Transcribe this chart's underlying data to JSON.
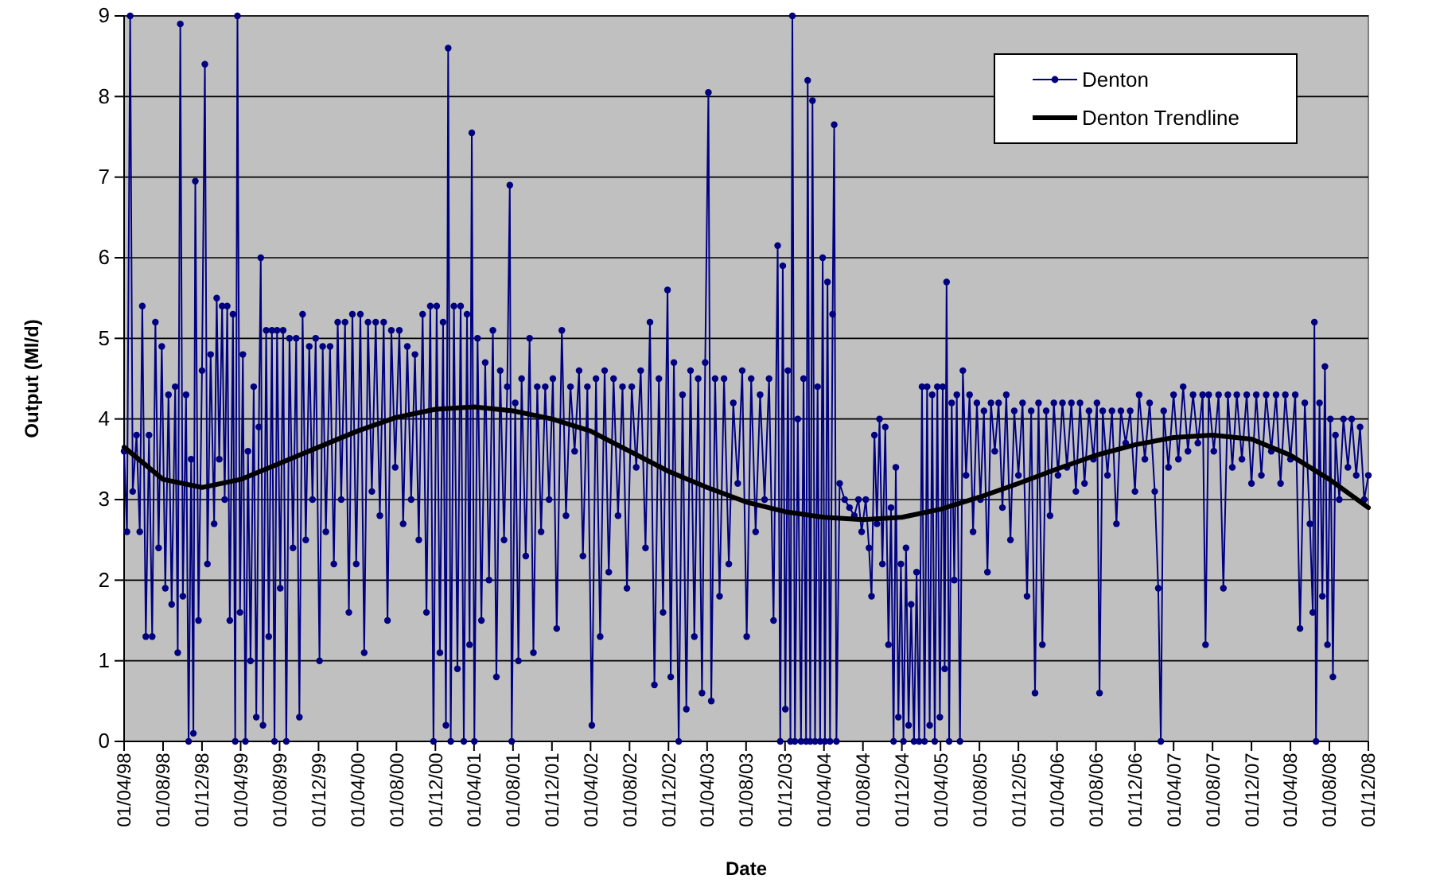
{
  "chart_data": {
    "type": "line",
    "xlabel": "Date",
    "ylabel": "Output (Ml/d)",
    "xlim": [
      "1998-04-01",
      "2008-12-01"
    ],
    "ylim": [
      0,
      9
    ],
    "yticks": [
      0,
      1,
      2,
      3,
      4,
      5,
      6,
      7,
      8,
      9
    ],
    "xticks": [
      {
        "value": "1998-04-01",
        "label": "01/04/98"
      },
      {
        "value": "1998-08-01",
        "label": "01/08/98"
      },
      {
        "value": "1998-12-01",
        "label": "01/12/98"
      },
      {
        "value": "1999-04-01",
        "label": "01/04/99"
      },
      {
        "value": "1999-08-01",
        "label": "01/08/99"
      },
      {
        "value": "1999-12-01",
        "label": "01/12/99"
      },
      {
        "value": "2000-04-01",
        "label": "01/04/00"
      },
      {
        "value": "2000-08-01",
        "label": "01/08/00"
      },
      {
        "value": "2000-12-01",
        "label": "01/12/00"
      },
      {
        "value": "2001-04-01",
        "label": "01/04/01"
      },
      {
        "value": "2001-08-01",
        "label": "01/08/01"
      },
      {
        "value": "2001-12-01",
        "label": "01/12/01"
      },
      {
        "value": "2002-04-01",
        "label": "01/04/02"
      },
      {
        "value": "2002-08-01",
        "label": "01/08/02"
      },
      {
        "value": "2002-12-01",
        "label": "01/12/02"
      },
      {
        "value": "2003-04-01",
        "label": "01/04/03"
      },
      {
        "value": "2003-08-01",
        "label": "01/08/03"
      },
      {
        "value": "2003-12-01",
        "label": "01/12/03"
      },
      {
        "value": "2004-04-01",
        "label": "01/04/04"
      },
      {
        "value": "2004-08-01",
        "label": "01/08/04"
      },
      {
        "value": "2004-12-01",
        "label": "01/12/04"
      },
      {
        "value": "2005-04-01",
        "label": "01/04/05"
      },
      {
        "value": "2005-08-01",
        "label": "01/08/05"
      },
      {
        "value": "2005-12-01",
        "label": "01/12/05"
      },
      {
        "value": "2006-04-01",
        "label": "01/04/06"
      },
      {
        "value": "2006-08-01",
        "label": "01/08/06"
      },
      {
        "value": "2006-12-01",
        "label": "01/12/06"
      },
      {
        "value": "2007-04-01",
        "label": "01/04/07"
      },
      {
        "value": "2007-08-01",
        "label": "01/08/07"
      },
      {
        "value": "2007-12-01",
        "label": "01/12/07"
      },
      {
        "value": "2008-04-01",
        "label": "01/04/08"
      },
      {
        "value": "2008-08-01",
        "label": "01/08/08"
      },
      {
        "value": "2008-12-01",
        "label": "01/12/08"
      }
    ],
    "grid": "y",
    "legend": "top right",
    "series": [
      {
        "name": "Denton",
        "color": "#000080",
        "marker": "circle",
        "line_style": "solid",
        "x": [
          "1998-04-01",
          "1998-04-10",
          "1998-04-20",
          "1998-04-28",
          "1998-05-10",
          "1998-05-20",
          "1998-05-28",
          "1998-06-08",
          "1998-06-18",
          "1998-06-28",
          "1998-07-08",
          "1998-07-18",
          "1998-07-28",
          "1998-08-08",
          "1998-08-18",
          "1998-08-28",
          "1998-09-08",
          "1998-09-16",
          "1998-09-24",
          "1998-10-02",
          "1998-10-12",
          "1998-10-20",
          "1998-10-28",
          "1998-11-04",
          "1998-11-10",
          "1998-11-20",
          "1998-12-01",
          "1998-12-10",
          "1998-12-18",
          "1998-12-28",
          "1999-01-08",
          "1999-01-16",
          "1999-01-24",
          "1999-02-02",
          "1999-02-10",
          "1999-02-18",
          "1999-02-26",
          "1999-03-08",
          "1999-03-15",
          "1999-03-22",
          "1999-03-30",
          "1999-04-08",
          "1999-04-16",
          "1999-04-24",
          "1999-05-02",
          "1999-05-12",
          "1999-05-20",
          "1999-05-28",
          "1999-06-03",
          "1999-06-10",
          "1999-06-20",
          "1999-06-28",
          "1999-07-08",
          "1999-07-16",
          "1999-07-24",
          "1999-08-03",
          "1999-08-12",
          "1999-08-22",
          "1999-09-01",
          "1999-09-12",
          "1999-09-22",
          "1999-10-02",
          "1999-10-12",
          "1999-10-22",
          "1999-11-02",
          "1999-11-12",
          "1999-11-22",
          "1999-12-04",
          "1999-12-14",
          "1999-12-24",
          "2000-01-06",
          "2000-01-18",
          "2000-01-30",
          "2000-02-10",
          "2000-02-22",
          "2000-03-05",
          "2000-03-16",
          "2000-03-28",
          "2000-04-10",
          "2000-04-22",
          "2000-05-04",
          "2000-05-16",
          "2000-05-28",
          "2000-06-10",
          "2000-06-22",
          "2000-07-04",
          "2000-07-16",
          "2000-07-28",
          "2000-08-10",
          "2000-08-22",
          "2000-09-04",
          "2000-09-16",
          "2000-09-28",
          "2000-10-10",
          "2000-10-22",
          "2000-11-03",
          "2000-11-15",
          "2000-11-25",
          "2000-12-05",
          "2000-12-15",
          "2000-12-25",
          "2001-01-03",
          "2001-01-10",
          "2001-01-18",
          "2001-01-28",
          "2001-02-08",
          "2001-02-18",
          "2001-02-28",
          "2001-03-10",
          "2001-03-18",
          "2001-03-25",
          "2001-04-02",
          "2001-04-12",
          "2001-04-24",
          "2001-05-06",
          "2001-05-18",
          "2001-05-30",
          "2001-06-10",
          "2001-06-22",
          "2001-07-04",
          "2001-07-14",
          "2001-07-22",
          "2001-07-28",
          "2001-08-08",
          "2001-08-18",
          "2001-08-28",
          "2001-09-10",
          "2001-09-22",
          "2001-10-04",
          "2001-10-16",
          "2001-10-28",
          "2001-11-10",
          "2001-11-22",
          "2001-12-04",
          "2001-12-16",
          "2002-01-01",
          "2002-01-14",
          "2002-01-28",
          "2002-02-10",
          "2002-02-24",
          "2002-03-08",
          "2002-03-22",
          "2002-04-05",
          "2002-04-18",
          "2002-05-01",
          "2002-05-15",
          "2002-05-28",
          "2002-06-12",
          "2002-06-26",
          "2002-07-10",
          "2002-07-24",
          "2002-08-08",
          "2002-08-22",
          "2002-09-05",
          "2002-09-20",
          "2002-10-04",
          "2002-10-18",
          "2002-11-01",
          "2002-11-14",
          "2002-11-28",
          "2002-12-08",
          "2002-12-18",
          "2003-01-02",
          "2003-01-14",
          "2003-01-26",
          "2003-02-08",
          "2003-02-20",
          "2003-03-04",
          "2003-03-16",
          "2003-03-26",
          "2003-04-05",
          "2003-04-14",
          "2003-04-26",
          "2003-05-10",
          "2003-05-24",
          "2003-06-08",
          "2003-06-22",
          "2003-07-06",
          "2003-07-20",
          "2003-08-03",
          "2003-08-17",
          "2003-08-31",
          "2003-09-14",
          "2003-09-28",
          "2003-10-12",
          "2003-10-26",
          "2003-11-08",
          "2003-11-16",
          "2003-11-24",
          "2003-12-02",
          "2003-12-10",
          "2003-12-18",
          "2003-12-24",
          "2004-01-01",
          "2004-01-10",
          "2004-01-20",
          "2004-01-28",
          "2004-02-05",
          "2004-02-10",
          "2004-02-18",
          "2004-02-25",
          "2004-03-04",
          "2004-03-12",
          "2004-03-20",
          "2004-03-28",
          "2004-04-04",
          "2004-04-12",
          "2004-04-20",
          "2004-04-28",
          "2004-05-03",
          "2004-05-10",
          "2004-05-20",
          "2004-06-05",
          "2004-06-20",
          "2004-07-05",
          "2004-07-18",
          "2004-07-28",
          "2004-08-10",
          "2004-08-20",
          "2004-08-28",
          "2004-09-06",
          "2004-09-14",
          "2004-09-22",
          "2004-10-01",
          "2004-10-10",
          "2004-10-20",
          "2004-10-28",
          "2004-11-05",
          "2004-11-12",
          "2004-11-20",
          "2004-11-28",
          "2004-12-06",
          "2004-12-14",
          "2004-12-22",
          "2004-12-30",
          "2005-01-08",
          "2005-01-16",
          "2005-01-24",
          "2005-02-02",
          "2005-02-10",
          "2005-02-18",
          "2005-02-26",
          "2005-03-06",
          "2005-03-14",
          "2005-03-22",
          "2005-03-30",
          "2005-04-08",
          "2005-04-14",
          "2005-04-20",
          "2005-04-28",
          "2005-05-06",
          "2005-05-14",
          "2005-05-22",
          "2005-06-01",
          "2005-06-10",
          "2005-06-20",
          "2005-07-01",
          "2005-07-12",
          "2005-07-24",
          "2005-08-04",
          "2005-08-15",
          "2005-08-26",
          "2005-09-06",
          "2005-09-18",
          "2005-09-30",
          "2005-10-12",
          "2005-10-24",
          "2005-11-06",
          "2005-11-18",
          "2005-12-01",
          "2005-12-14",
          "2005-12-28",
          "2006-01-10",
          "2006-01-22",
          "2006-02-02",
          "2006-02-14",
          "2006-02-26",
          "2006-03-10",
          "2006-03-22",
          "2006-04-04",
          "2006-04-18",
          "2006-05-02",
          "2006-05-16",
          "2006-05-30",
          "2006-06-12",
          "2006-06-26",
          "2006-07-10",
          "2006-07-24",
          "2006-08-04",
          "2006-08-12",
          "2006-08-22",
          "2006-09-06",
          "2006-09-20",
          "2006-10-04",
          "2006-10-18",
          "2006-11-02",
          "2006-11-16",
          "2006-12-01",
          "2006-12-14",
          "2007-01-01",
          "2007-01-16",
          "2007-02-01",
          "2007-02-12",
          "2007-02-20",
          "2007-03-01",
          "2007-03-16",
          "2007-04-01",
          "2007-04-16",
          "2007-05-01",
          "2007-05-16",
          "2007-06-01",
          "2007-06-16",
          "2007-07-01",
          "2007-07-10",
          "2007-07-20",
          "2007-08-05",
          "2007-08-20",
          "2007-09-04",
          "2007-09-18",
          "2007-10-02",
          "2007-10-16",
          "2007-11-01",
          "2007-11-16",
          "2007-12-01",
          "2007-12-16",
          "2008-01-01",
          "2008-01-16",
          "2008-02-01",
          "2008-02-16",
          "2008-03-01",
          "2008-03-16",
          "2008-04-01",
          "2008-04-16",
          "2008-05-01",
          "2008-05-16",
          "2008-06-01",
          "2008-06-10",
          "2008-06-15",
          "2008-06-20",
          "2008-07-01",
          "2008-07-10",
          "2008-07-18",
          "2008-07-26",
          "2008-08-04",
          "2008-08-12",
          "2008-08-20",
          "2008-09-01",
          "2008-09-14",
          "2008-09-28",
          "2008-10-10",
          "2008-10-24",
          "2008-11-05",
          "2008-11-18",
          "2008-12-01"
        ],
        "values": [
          3.6,
          2.6,
          9.0,
          3.1,
          3.8,
          2.6,
          5.4,
          1.3,
          3.8,
          1.3,
          5.2,
          2.4,
          4.9,
          1.9,
          4.3,
          1.7,
          4.4,
          1.1,
          8.9,
          1.8,
          4.3,
          0.0,
          3.5,
          0.1,
          6.95,
          1.5,
          4.6,
          8.4,
          2.2,
          4.8,
          2.7,
          5.5,
          3.5,
          5.4,
          3.0,
          5.4,
          1.5,
          5.3,
          0.0,
          9.0,
          1.6,
          4.8,
          0.0,
          3.6,
          1.0,
          4.4,
          0.3,
          3.9,
          6.0,
          0.2,
          5.1,
          1.3,
          5.1,
          0.0,
          5.1,
          1.9,
          5.1,
          0.0,
          5.0,
          2.4,
          5.0,
          0.3,
          5.3,
          2.5,
          4.9,
          3.0,
          5.0,
          1.0,
          4.9,
          2.6,
          4.9,
          2.2,
          5.2,
          3.0,
          5.2,
          1.6,
          5.3,
          2.2,
          5.3,
          1.1,
          5.2,
          3.1,
          5.2,
          2.8,
          5.2,
          1.5,
          5.1,
          3.4,
          5.1,
          2.7,
          4.9,
          3.0,
          4.8,
          2.5,
          5.3,
          1.6,
          5.4,
          0.0,
          5.4,
          1.1,
          5.2,
          0.2,
          8.6,
          0.0,
          5.4,
          0.9,
          5.4,
          0.0,
          5.3,
          1.2,
          7.55,
          0.0,
          5.0,
          1.5,
          4.7,
          2.0,
          5.1,
          0.8,
          4.6,
          2.5,
          4.4,
          6.9,
          0.0,
          4.2,
          1.0,
          4.5,
          2.3,
          5.0,
          1.1,
          4.4,
          2.6,
          4.4,
          3.0,
          4.5,
          1.4,
          5.1,
          2.8,
          4.4,
          3.6,
          4.6,
          2.3,
          4.4,
          0.2,
          4.5,
          1.3,
          4.6,
          2.1,
          4.5,
          2.8,
          4.4,
          1.9,
          4.4,
          3.4,
          4.6,
          2.4,
          5.2,
          0.7,
          4.5,
          1.6,
          5.6,
          0.8,
          4.7,
          0.0,
          4.3,
          0.4,
          4.6,
          1.3,
          4.5,
          0.6,
          4.7,
          8.05,
          0.5,
          4.5,
          1.8,
          4.5,
          2.2,
          4.2,
          3.2,
          4.6,
          1.3,
          4.5,
          2.6,
          4.3,
          3.0,
          4.5,
          1.5,
          6.15,
          0.0,
          5.9,
          0.4,
          4.6,
          0.0,
          9.0,
          0.0,
          4.0,
          0.0,
          4.5,
          0.0,
          8.2,
          0.0,
          7.95,
          0.0,
          4.4,
          0.0,
          6.0,
          0.0,
          5.7,
          0.0,
          5.3,
          7.65,
          0.0,
          3.2,
          3.0,
          2.9,
          2.8,
          3.0,
          2.6,
          3.0,
          2.4,
          1.8,
          3.8,
          2.7,
          4.0,
          2.2,
          3.9,
          1.2,
          2.9,
          0.0,
          3.4,
          0.3,
          2.2,
          0.0,
          2.4,
          0.2,
          1.7,
          0.0,
          2.1,
          0.0,
          4.4,
          0.0,
          4.4,
          0.2,
          4.3,
          0.0,
          4.4,
          0.3,
          4.4,
          0.9,
          5.7,
          0.0,
          4.2,
          2.0,
          4.3,
          0.0,
          4.6,
          3.3,
          4.3,
          2.6,
          4.2,
          3.0,
          4.1,
          2.1,
          4.2,
          3.6,
          4.2,
          2.9,
          4.3,
          2.5,
          4.1,
          3.3,
          4.2,
          1.8,
          4.1,
          0.6,
          4.2,
          1.2,
          4.1,
          2.8,
          4.2,
          3.3,
          4.2,
          3.4,
          4.2,
          3.1,
          4.2,
          3.2,
          4.1,
          3.5,
          4.2,
          0.6,
          4.1,
          3.3,
          4.1,
          2.7,
          4.1,
          3.7,
          4.1,
          3.1,
          4.3,
          3.5,
          4.2,
          3.1,
          1.9,
          0.0,
          4.1,
          3.4,
          4.3,
          3.5,
          4.4,
          3.6,
          4.3,
          3.7,
          4.3,
          1.2,
          4.3,
          3.6,
          4.3,
          1.9,
          4.3,
          3.4,
          4.3,
          3.5,
          4.3,
          3.2,
          4.3,
          3.3,
          4.3,
          3.6,
          4.3,
          3.2,
          4.3,
          3.5,
          4.3,
          1.4,
          4.2,
          2.7,
          1.6,
          5.2,
          0.0,
          4.2,
          1.8,
          4.65,
          1.2,
          4.0,
          0.8,
          3.8,
          3.0,
          4.0,
          3.4,
          4.0,
          3.3,
          3.9,
          3.0,
          3.3
        ]
      },
      {
        "name": "Denton Trendline",
        "color": "#000000",
        "marker": "none",
        "line_style": "solid",
        "x": [
          "1998-04-01",
          "1998-08-01",
          "1998-12-01",
          "1999-04-01",
          "1999-08-01",
          "1999-12-01",
          "2000-04-01",
          "2000-08-01",
          "2000-12-01",
          "2001-04-01",
          "2001-08-01",
          "2001-12-01",
          "2002-04-01",
          "2002-08-01",
          "2002-12-01",
          "2003-04-01",
          "2003-08-01",
          "2003-12-01",
          "2004-04-01",
          "2004-08-01",
          "2004-12-01",
          "2005-04-01",
          "2005-08-01",
          "2005-12-01",
          "2006-04-01",
          "2006-08-01",
          "2006-12-01",
          "2007-04-01",
          "2007-08-01",
          "2007-12-01",
          "2008-04-01",
          "2008-08-01",
          "2008-12-01"
        ],
        "values": [
          3.65,
          3.25,
          3.15,
          3.25,
          3.45,
          3.65,
          3.85,
          4.02,
          4.12,
          4.15,
          4.1,
          4.0,
          3.85,
          3.6,
          3.35,
          3.15,
          2.97,
          2.85,
          2.78,
          2.75,
          2.78,
          2.88,
          3.03,
          3.2,
          3.38,
          3.55,
          3.68,
          3.77,
          3.8,
          3.75,
          3.55,
          3.25,
          2.9
        ]
      }
    ]
  }
}
